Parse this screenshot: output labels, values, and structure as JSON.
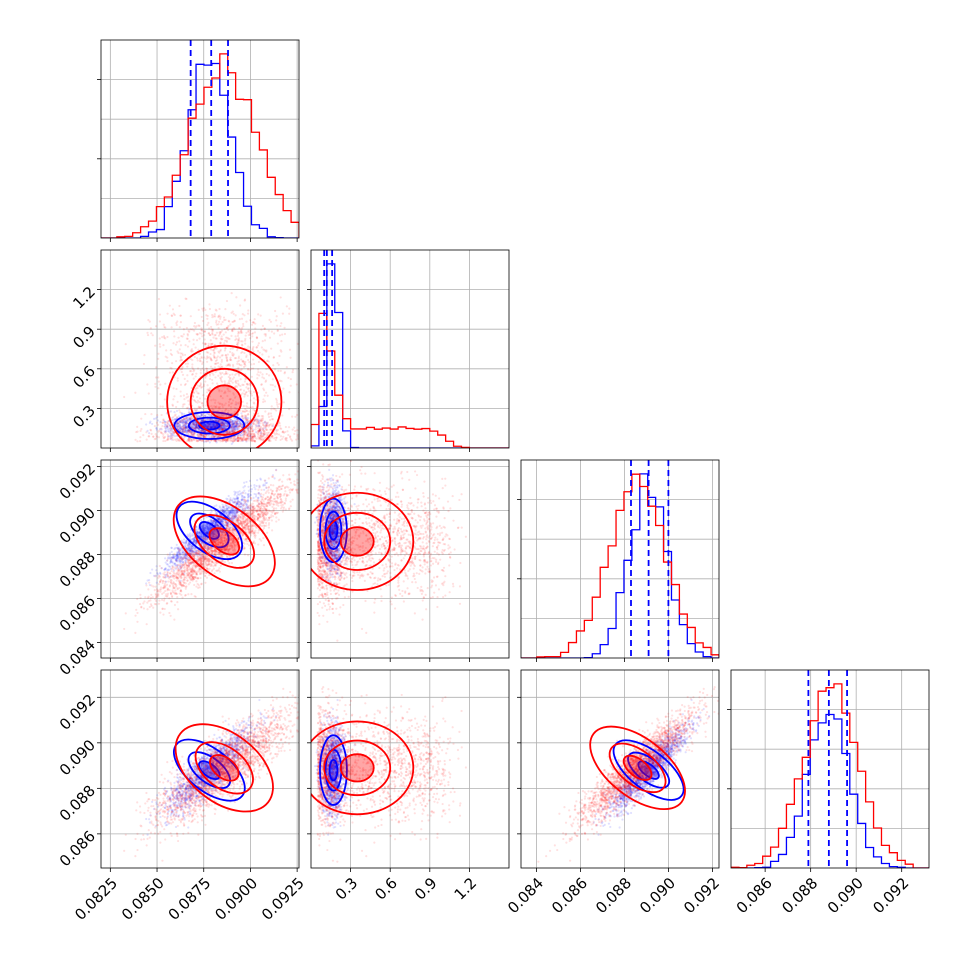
{
  "chart_data": {
    "type": "corner",
    "colors": {
      "series_a": "#0000ff",
      "series_b": "#ff0000",
      "grid": "#b0b0b0"
    },
    "grid": true,
    "parameters": [
      {
        "id": "p1",
        "range": [
          0.082,
          0.0926
        ],
        "ticks": [
          0.0825,
          0.085,
          0.0875,
          0.09,
          0.0925
        ],
        "tick_labels": [
          "0.0825",
          "0.0850",
          "0.0875",
          "0.0900",
          "0.0925"
        ]
      },
      {
        "id": "p2",
        "range": [
          0.0,
          1.5
        ],
        "ticks": [
          0.3,
          0.6,
          0.9,
          1.2
        ],
        "tick_labels": [
          "0.3",
          "0.6",
          "0.9",
          "1.2"
        ]
      },
      {
        "id": "p3",
        "range": [
          0.0833,
          0.0923
        ],
        "ticks": [
          0.084,
          0.086,
          0.088,
          0.09,
          0.092
        ],
        "tick_labels": [
          "0.084",
          "0.086",
          "0.088",
          "0.090",
          "0.092"
        ]
      },
      {
        "id": "p4",
        "range": [
          0.0845,
          0.0932
        ],
        "ticks": [
          0.086,
          0.088,
          0.09,
          0.092
        ],
        "tick_labels": [
          "0.086",
          "0.088",
          "0.090",
          "0.092"
        ]
      }
    ],
    "series": [
      {
        "color": "#0000ff",
        "means": [
          0.0878,
          0.17,
          0.0891,
          0.0888
        ],
        "sds": [
          0.0011,
          0.06,
          0.00085,
          0.0009
        ],
        "quantiles": [
          [
            0.0868,
            0.0879,
            0.0888
          ],
          [
            0.1,
            0.12,
            0.16
          ],
          [
            0.0883,
            0.0891,
            0.09
          ],
          [
            0.0879,
            0.0888,
            0.0896
          ]
        ]
      },
      {
        "color": "#ff0000",
        "means": [
          0.0886,
          0.35,
          0.0886,
          0.0889
        ],
        "sds": [
          0.0018,
          0.25,
          0.0013,
          0.0012
        ]
      }
    ]
  }
}
